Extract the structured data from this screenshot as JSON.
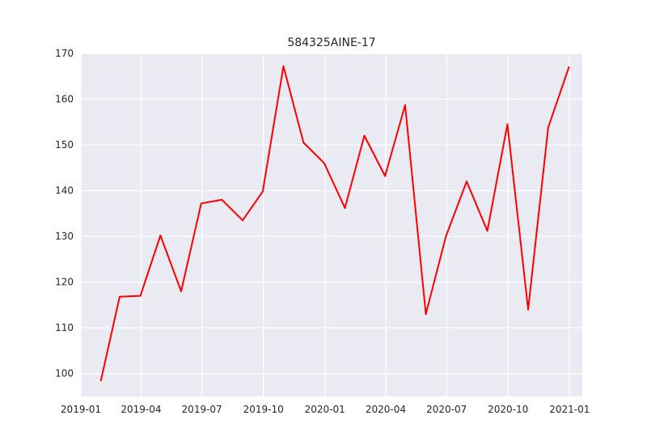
{
  "chart_data": {
    "type": "line",
    "title": "584325AINE-17",
    "xlabel": "",
    "ylabel": "",
    "ylim": [
      95,
      170
    ],
    "xlim": [
      "2019-01-01",
      "2021-01-20"
    ],
    "grid": true,
    "legend": "none",
    "colors": {
      "line": "#ff0000",
      "plot_background": "#eaeaf2",
      "grid": "#ffffff",
      "text": "#262626"
    },
    "x_ticks": [
      "2019-01",
      "2019-04",
      "2019-07",
      "2019-10",
      "2020-01",
      "2020-04",
      "2020-07",
      "2020-10",
      "2021-01"
    ],
    "y_ticks": [
      100,
      110,
      120,
      130,
      140,
      150,
      160,
      170
    ],
    "series": [
      {
        "x": [
          "2019-01-31",
          "2019-02-28",
          "2019-03-31",
          "2019-04-30",
          "2019-05-31",
          "2019-06-30",
          "2019-07-31",
          "2019-08-31",
          "2019-09-30",
          "2019-10-31",
          "2019-11-30",
          "2019-12-31",
          "2020-01-31",
          "2020-02-29",
          "2020-03-31",
          "2020-04-30",
          "2020-05-31",
          "2020-06-30",
          "2020-07-31",
          "2020-08-31",
          "2020-09-30",
          "2020-10-31",
          "2020-11-30",
          "2020-12-31"
        ],
        "values": [
          98.5,
          116.8,
          117.0,
          130.2,
          118.0,
          137.2,
          138.0,
          133.5,
          139.8,
          167.2,
          150.5,
          146.0,
          136.2,
          152.0,
          143.2,
          158.7,
          113.0,
          130.0,
          142.0,
          131.2,
          154.5,
          114.0,
          153.8,
          167.0
        ]
      }
    ]
  }
}
